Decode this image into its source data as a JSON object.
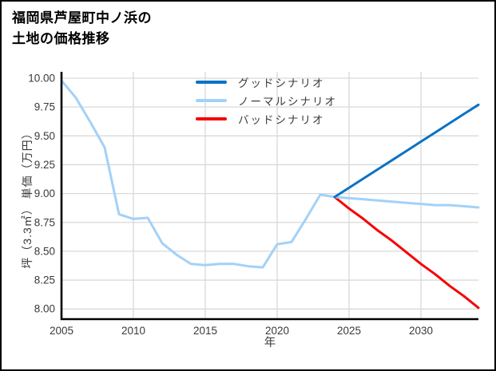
{
  "chart_data": {
    "type": "line",
    "title": "福岡県芦屋町中ノ浜の土地の価格推移",
    "title_lines": [
      "福岡県芦屋町中ノ浜の",
      "土地の価格推移"
    ],
    "xlabel": "年",
    "ylabel": "坪（3.3㎡） 単価（万円）",
    "xlim": [
      2005,
      2034
    ],
    "ylim": [
      7.9,
      10.04
    ],
    "x_ticks": [
      "2005",
      "2010",
      "2015",
      "2020",
      "2025",
      "2030"
    ],
    "y_ticks": [
      "10.00",
      "9.75",
      "9.50",
      "9.25",
      "9.00",
      "8.75",
      "8.50",
      "8.25",
      "8.00"
    ],
    "grid": "on",
    "legend_position": "top-center-inside",
    "colors": {
      "good": "#0b72c4",
      "normal": "#a3d1f7",
      "bad": "#f40404",
      "gridline": "#d9d9d9",
      "axis": "#000000",
      "tick_text": "#3a3a3a"
    },
    "series": [
      {
        "name": "グッドシナリオ",
        "color": "#0b72c4",
        "points": [
          [
            2024,
            8.97
          ],
          [
            2025,
            9.05
          ],
          [
            2026,
            9.13
          ],
          [
            2027,
            9.21
          ],
          [
            2028,
            9.29
          ],
          [
            2029,
            9.37
          ],
          [
            2030,
            9.45
          ],
          [
            2031,
            9.53
          ],
          [
            2032,
            9.61
          ],
          [
            2033,
            9.69
          ],
          [
            2034,
            9.77
          ]
        ]
      },
      {
        "name": "ノーマルシナリオ",
        "color": "#a3d1f7",
        "points": [
          [
            2005,
            9.98
          ],
          [
            2006,
            9.83
          ],
          [
            2007,
            9.62
          ],
          [
            2008,
            9.4
          ],
          [
            2009,
            8.82
          ],
          [
            2010,
            8.78
          ],
          [
            2011,
            8.79
          ],
          [
            2012,
            8.57
          ],
          [
            2013,
            8.47
          ],
          [
            2014,
            8.39
          ],
          [
            2015,
            8.38
          ],
          [
            2016,
            8.39
          ],
          [
            2017,
            8.39
          ],
          [
            2018,
            8.37
          ],
          [
            2019,
            8.36
          ],
          [
            2020,
            8.56
          ],
          [
            2021,
            8.58
          ],
          [
            2022,
            8.78
          ],
          [
            2023,
            8.99
          ],
          [
            2024,
            8.97
          ],
          [
            2025,
            8.96
          ],
          [
            2026,
            8.95
          ],
          [
            2027,
            8.94
          ],
          [
            2028,
            8.93
          ],
          [
            2029,
            8.92
          ],
          [
            2030,
            8.91
          ],
          [
            2031,
            8.9
          ],
          [
            2032,
            8.9
          ],
          [
            2033,
            8.89
          ],
          [
            2034,
            8.88
          ]
        ]
      },
      {
        "name": "バッドシナリオ",
        "color": "#f40404",
        "points": [
          [
            2024,
            8.97
          ],
          [
            2025,
            8.87
          ],
          [
            2026,
            8.78
          ],
          [
            2027,
            8.68
          ],
          [
            2028,
            8.59
          ],
          [
            2029,
            8.49
          ],
          [
            2030,
            8.39
          ],
          [
            2031,
            8.3
          ],
          [
            2032,
            8.2
          ],
          [
            2033,
            8.11
          ],
          [
            2034,
            8.01
          ]
        ]
      }
    ]
  }
}
